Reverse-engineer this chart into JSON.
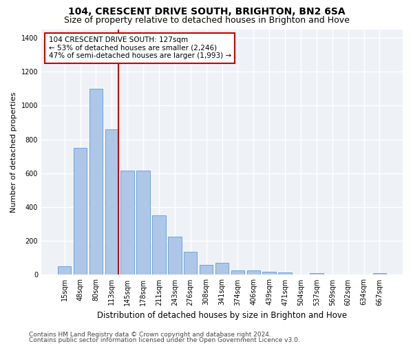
{
  "title": "104, CRESCENT DRIVE SOUTH, BRIGHTON, BN2 6SA",
  "subtitle": "Size of property relative to detached houses in Brighton and Hove",
  "xlabel": "Distribution of detached houses by size in Brighton and Hove",
  "ylabel": "Number of detached properties",
  "footer1": "Contains HM Land Registry data © Crown copyright and database right 2024.",
  "footer2": "Contains public sector information licensed under the Open Government Licence v3.0.",
  "categories": [
    "15sqm",
    "48sqm",
    "80sqm",
    "113sqm",
    "145sqm",
    "178sqm",
    "211sqm",
    "243sqm",
    "276sqm",
    "308sqm",
    "341sqm",
    "374sqm",
    "406sqm",
    "439sqm",
    "471sqm",
    "504sqm",
    "537sqm",
    "569sqm",
    "602sqm",
    "634sqm",
    "667sqm"
  ],
  "values": [
    50,
    750,
    1100,
    860,
    615,
    615,
    350,
    225,
    135,
    60,
    70,
    25,
    25,
    20,
    12,
    0,
    8,
    0,
    0,
    0,
    8
  ],
  "bar_color": "#aec6e8",
  "bar_edge_color": "#5b9bd5",
  "property_label": "104 CRESCENT DRIVE SOUTH: 127sqm",
  "annotation_line1": "← 53% of detached houses are smaller (2,246)",
  "annotation_line2": "47% of semi-detached houses are larger (1,993) →",
  "vline_color": "#cc0000",
  "vline_x_index": 3.43,
  "annotation_box_color": "#ffffff",
  "annotation_box_edge": "#cc0000",
  "ylim": [
    0,
    1450
  ],
  "yticks": [
    0,
    200,
    400,
    600,
    800,
    1000,
    1200,
    1400
  ],
  "background_color": "#eef2f7",
  "grid_color": "#ffffff",
  "title_fontsize": 10,
  "subtitle_fontsize": 9,
  "xlabel_fontsize": 8.5,
  "ylabel_fontsize": 8,
  "tick_fontsize": 7,
  "footer_fontsize": 6.5,
  "annot_fontsize": 7.5
}
